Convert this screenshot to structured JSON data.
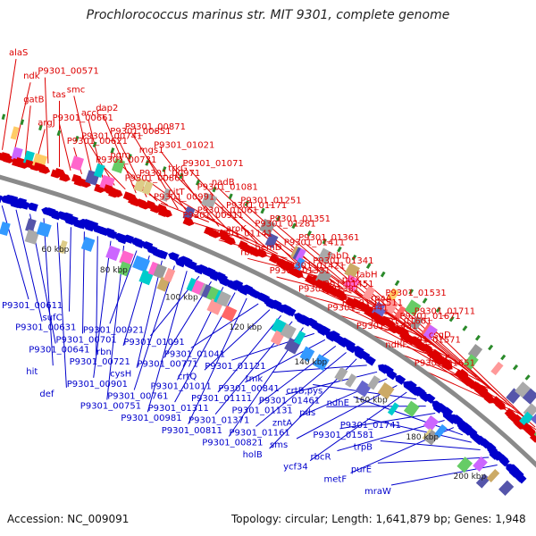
{
  "title": "Prochlorococcus marinus str. MIT 9301, complete genome",
  "footer": {
    "accession": "Accession: NC_009091",
    "topology": "Topology: circular; Length: 1,641,879 bp; Genes: 1,948"
  },
  "ticks": [
    "60 kbp",
    "80 kbp",
    "100 kbp",
    "120 kbp",
    "140 kbp",
    "160 kbp",
    "180 kbp",
    "200 kbp"
  ],
  "colors": {
    "forward": "#dd0000",
    "reverse": "#0000cc",
    "backbone": "#8a8a8a",
    "tick_mark": "#2a8a2a"
  },
  "forward_labels": [
    "alaS",
    "ndk",
    "gatB",
    "argJ",
    "P9301_00571",
    "tas",
    "P9301_00661",
    "P9301_00621",
    "smc",
    "accC",
    "P9301_00741",
    "P9301_00731",
    "dap2",
    "P9301_00851",
    "pgm",
    "P9301_00861",
    "P9301_00871",
    "mgs1",
    "P9301_00971",
    "P9301_00991",
    "P9301_01021",
    "trkG",
    "citT",
    "P9301_00911",
    "P9301_01071",
    "P9301_01081",
    "P9301_01061",
    "P9301_01141",
    "nadB",
    "P9301_01171",
    "aroK",
    "rbfA",
    "P9301_01251",
    "P9301_01281",
    "hemD",
    "P9301_01331",
    "P9301_01351",
    "P9301_01411",
    "P9301_01421",
    "P9301_01381",
    "P9301_01361",
    "P9301_01341",
    "P9301_01451",
    "P9301_01441",
    "fabD",
    "plsX",
    "P9301_01511",
    "P9301_01431",
    "fabH",
    "rpaA",
    "P9301_01601",
    "ndhF",
    "P9301_01531",
    "P9301_01671",
    "P9301_01571",
    "P9301_01651",
    "P9301_01711",
    "csgD",
    "pspE"
  ],
  "reverse_labels": [
    "P9301_00611",
    "P9301_00631",
    "P9301_00641",
    "hit",
    "def",
    "sufC",
    "P9301_00701",
    "P9301_00721",
    "P9301_00901",
    "P9301_00751",
    "P9301_00921",
    "rbn",
    "cysH",
    "P9301_00761",
    "P9301_00981",
    "P9301_01091",
    "P9301_00771",
    "P9301_01011",
    "P9301_01311",
    "P9301_00811",
    "P9301_01041",
    "crtQ",
    "P9301_01111",
    "P9301_01371",
    "P9301_00821",
    "P9301_01121",
    "P9301_00841",
    "P9301_01131",
    "P9301_01161",
    "holB",
    "tmk",
    "P9301_01461",
    "zntA",
    "sms",
    "ycf34",
    "crtB,pys",
    "pds",
    "P9301_01581",
    "rbcR",
    "metF",
    "ndhE",
    "P9301_01741",
    "trpB",
    "purE",
    "mraW"
  ]
}
